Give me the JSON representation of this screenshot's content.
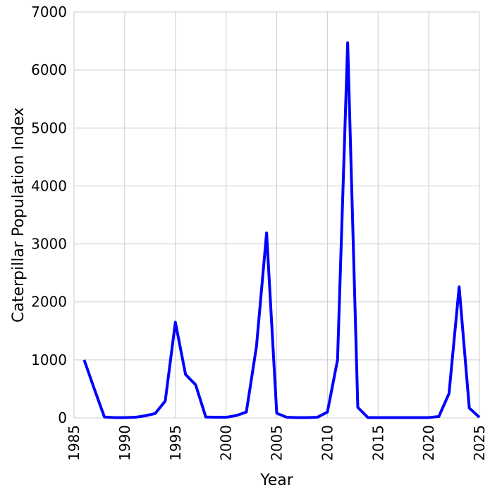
{
  "chart_data": {
    "type": "line",
    "title": "",
    "xlabel": "Year",
    "ylabel": "Caterpillar Population Index",
    "xlim": [
      1985,
      2025
    ],
    "ylim": [
      0,
      7000
    ],
    "xticks": [
      1985,
      1990,
      1995,
      2000,
      2005,
      2010,
      2015,
      2020,
      2025
    ],
    "yticks": [
      0,
      1000,
      2000,
      3000,
      4000,
      5000,
      6000,
      7000
    ],
    "grid": true,
    "line_color": "#0000ff",
    "x": [
      1986,
      1987,
      1988,
      1989,
      1990,
      1991,
      1992,
      1993,
      1994,
      1995,
      1996,
      1997,
      1998,
      1999,
      2000,
      2001,
      2002,
      2003,
      2004,
      2005,
      2006,
      2007,
      2008,
      2009,
      2010,
      2011,
      2012,
      2013,
      2014,
      2015,
      2016,
      2017,
      2018,
      2019,
      2020,
      2021,
      2022,
      2023,
      2024,
      2025
    ],
    "y": [
      1000,
      500,
      15,
      5,
      5,
      10,
      35,
      75,
      290,
      1650,
      750,
      570,
      15,
      10,
      10,
      40,
      100,
      1230,
      3190,
      80,
      10,
      5,
      5,
      10,
      100,
      1000,
      6470,
      180,
      5,
      5,
      5,
      5,
      5,
      5,
      5,
      25,
      420,
      2260,
      170,
      10
    ]
  }
}
